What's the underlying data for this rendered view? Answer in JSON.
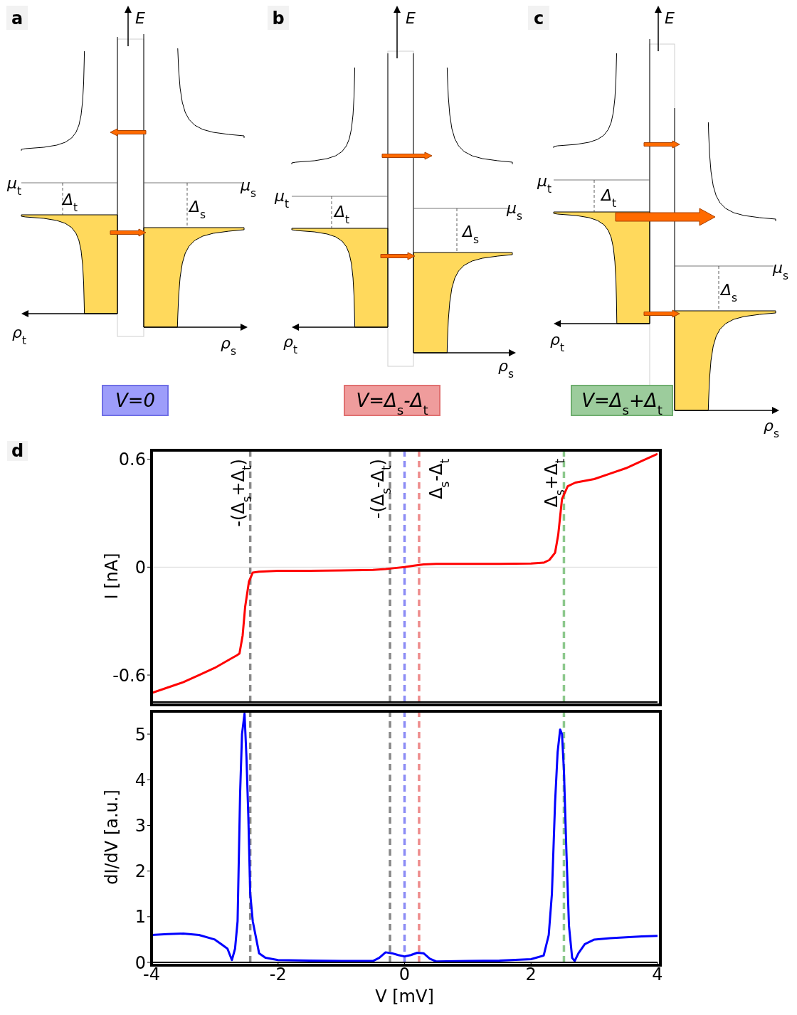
{
  "chart_data": [
    {
      "type": "other",
      "title": "a",
      "annotations": [
        "E",
        "μ$_{t}$",
        "μ$_{s}$",
        "Δ$_{t}$",
        "Δ$_{s}$",
        "ρ$_{t}$",
        "ρ$_{s}$",
        "V=0"
      ]
    },
    {
      "type": "other",
      "title": "b",
      "annotations": [
        "E",
        "μ$_{t}$",
        "μ$_{s}$",
        "Δ$_{t}$",
        "Δ$_{s}$",
        "ρ$_{t}$",
        "ρ$_{s}$",
        "V=Δ$_{s}$-Δ$_{t}$"
      ]
    },
    {
      "type": "other",
      "title": "c",
      "annotations": [
        "E",
        "μ$_{t}$",
        "μ$_{s}$",
        "Δ$_{t}$",
        "Δ$_{s}$",
        "ρ$_{t}$",
        "ρ$_{s}$",
        "V=Δ$_{s}$+Δ$_{t}$"
      ]
    },
    {
      "type": "line",
      "title": "d",
      "ylabel": "I [nA]",
      "xlim": [
        -4,
        4
      ],
      "xticks": [
        -4,
        -2,
        0,
        2,
        4
      ],
      "ylim": [
        -0.75,
        0.65
      ],
      "yticks": [
        -0.6,
        0,
        0.6
      ],
      "tick_labels": "y",
      "marker": "none",
      "series": [
        {
          "color": "#ff0000",
          "x": [
            -4,
            -3.75,
            -3.5,
            -3.25,
            -3,
            -2.75,
            -2.65,
            -2.61,
            -2.56,
            -2.52,
            -2.46,
            -2.4,
            -2.3,
            -2,
            -1.5,
            -1,
            -0.5,
            -0.3,
            -0.15,
            0,
            0.15,
            0.3,
            0.5,
            1,
            1.5,
            2,
            2.2,
            2.29,
            2.38,
            2.43,
            2.49,
            2.58,
            2.7,
            3,
            3.25,
            3.5,
            3.75,
            4
          ],
          "values": [
            -0.7,
            -0.67,
            -0.64,
            -0.6,
            -0.56,
            -0.51,
            -0.49,
            -0.48,
            -0.38,
            -0.22,
            -0.08,
            -0.03,
            -0.025,
            -0.02,
            -0.02,
            -0.018,
            -0.015,
            -0.01,
            -0.005,
            0,
            0.008,
            0.015,
            0.018,
            0.018,
            0.018,
            0.02,
            0.025,
            0.04,
            0.08,
            0.18,
            0.38,
            0.45,
            0.47,
            0.49,
            0.52,
            0.55,
            0.59,
            0.63
          ]
        }
      ],
      "ref_lines": [
        {
          "axis": "y",
          "value": 0,
          "color": "#d9d9d9",
          "line_style": "solid"
        },
        {
          "axis": "x",
          "value": -2.44,
          "label": "-(Δ$_{s}$+Δ$_{t}$)",
          "color": "#888888",
          "line_style": "dashed"
        },
        {
          "axis": "x",
          "value": -0.23,
          "label": "-(Δ$_{s}$-Δ$_{t}$)",
          "color": "#888888",
          "line_style": "dashed"
        },
        {
          "axis": "x",
          "value": 0,
          "color": "#8c8cf5",
          "line_style": "dashed"
        },
        {
          "axis": "x",
          "value": 0.23,
          "label": "Δ$_{s}$-Δ$_{t}$",
          "color": "#ee8c8c",
          "line_style": "dashed"
        },
        {
          "axis": "x",
          "value": 2.52,
          "label": "Δ$_{s}$+Δ$_{t}$",
          "color": "#8cc88c",
          "line_style": "dashed"
        }
      ]
    },
    {
      "type": "line",
      "xlabel": "V [mV]",
      "ylabel": "dI/dV [a.u.]",
      "xlim": [
        -4,
        4
      ],
      "xticks": [
        -4,
        -2,
        0,
        2,
        4
      ],
      "ylim": [
        0,
        5.5
      ],
      "yticks": [
        0,
        1,
        2,
        3,
        4,
        5
      ],
      "marker": "none",
      "series": [
        {
          "color": "#0000ff",
          "x": [
            -4,
            -3.75,
            -3.5,
            -3.25,
            -3,
            -2.9,
            -2.8,
            -2.73,
            -2.68,
            -2.64,
            -2.6,
            -2.57,
            -2.53,
            -2.5,
            -2.47,
            -2.44,
            -2.4,
            -2.3,
            -2.2,
            -2,
            -1.5,
            -1,
            -0.5,
            -0.4,
            -0.3,
            -0.2,
            -0.1,
            0,
            0.1,
            0.2,
            0.3,
            0.4,
            0.5,
            1,
            1.5,
            2,
            2.2,
            2.28,
            2.33,
            2.38,
            2.42,
            2.46,
            2.49,
            2.52,
            2.56,
            2.6,
            2.65,
            2.69,
            2.75,
            2.85,
            3,
            3.25,
            3.5,
            3.75,
            4
          ],
          "values": [
            0.6,
            0.62,
            0.63,
            0.6,
            0.5,
            0.4,
            0.3,
            0.05,
            0.3,
            0.9,
            3.7,
            5.0,
            5.45,
            4.5,
            3.2,
            1.5,
            0.9,
            0.2,
            0.1,
            0.05,
            0.04,
            0.03,
            0.03,
            0.1,
            0.22,
            0.2,
            0.16,
            0.13,
            0.16,
            0.21,
            0.2,
            0.08,
            0.02,
            0.03,
            0.04,
            0.07,
            0.15,
            0.6,
            1.5,
            3.5,
            4.6,
            5.1,
            5.0,
            4.2,
            2.4,
            0.8,
            0.1,
            0.03,
            0.2,
            0.4,
            0.5,
            0.53,
            0.55,
            0.57,
            0.58
          ]
        }
      ],
      "ref_lines": [
        {
          "axis": "x",
          "value": -2.44,
          "color": "#888888",
          "line_style": "dashed"
        },
        {
          "axis": "x",
          "value": -0.23,
          "color": "#888888",
          "line_style": "dashed"
        },
        {
          "axis": "x",
          "value": 0,
          "color": "#8c8cf5",
          "line_style": "dashed"
        },
        {
          "axis": "x",
          "value": 0.23,
          "color": "#ee8c8c",
          "line_style": "dashed"
        },
        {
          "axis": "x",
          "value": 2.52,
          "color": "#8cc88c",
          "line_style": "dashed"
        }
      ]
    }
  ]
}
